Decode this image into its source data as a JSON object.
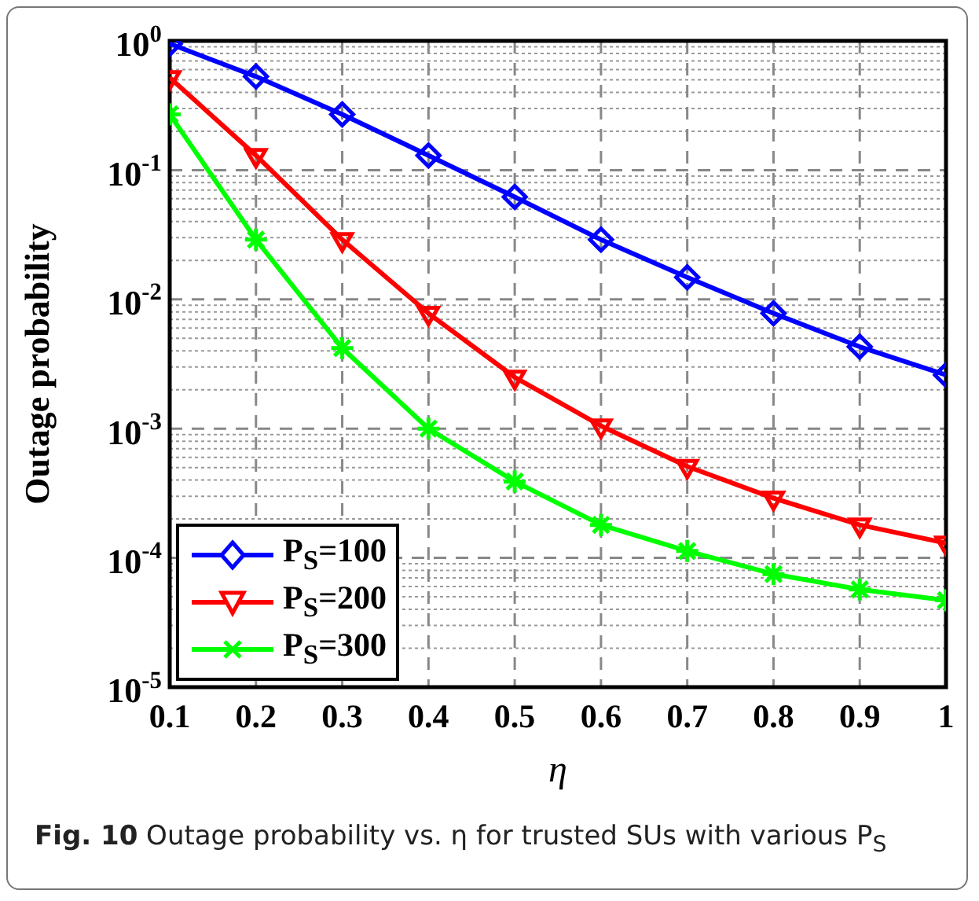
{
  "chart_data": {
    "type": "line",
    "xlabel": "η",
    "ylabel": "Outage probability",
    "annotations": [
      "Fig. 10 Outage probability vs. η for trusted SUs with various P$_{S}$"
    ],
    "x": [
      0.1,
      0.2,
      0.3,
      0.4,
      0.5,
      0.6,
      0.7,
      0.8,
      0.9,
      1
    ],
    "series": [
      {
        "name": "P$_{S}$=100",
        "color": "#0000ff",
        "marker": "diamond",
        "values": [
          0.95,
          0.53,
          0.27,
          0.13,
          0.062,
          0.029,
          0.0148,
          0.0078,
          0.0043,
          0.0026
        ]
      },
      {
        "name": "P$_{S}$=200",
        "color": "#ff0000",
        "marker": "triangle",
        "values": [
          0.52,
          0.13,
          0.029,
          0.0078,
          0.0025,
          0.00105,
          0.00051,
          0.00029,
          0.00018,
          0.00013
        ]
      },
      {
        "name": "P$_{S}$=300",
        "color": "#00ff00",
        "marker": "cross",
        "values": [
          0.27,
          0.029,
          0.0042,
          0.001,
          0.00039,
          0.00018,
          0.000113,
          7.5e-05,
          5.7e-05,
          4.7e-05
        ]
      }
    ],
    "xlim": [
      0.1,
      1
    ],
    "xticks": [
      0.1,
      0.2,
      0.3,
      0.4,
      0.5,
      0.6,
      0.7,
      0.8,
      0.9,
      1
    ],
    "ylim": [
      1e-05,
      1
    ],
    "yticks": [
      {
        "value": 1e-05,
        "label": "10$^{-5}$"
      },
      {
        "value": 0.0001,
        "label": "10$^{-4}$"
      },
      {
        "value": 0.001,
        "label": "10$^{-3}$"
      },
      {
        "value": 0.01,
        "label": "10$^{-2}$"
      },
      {
        "value": 0.1,
        "label": "10$^{-1}$"
      },
      {
        "value": 1,
        "label": "10$^{0}$"
      }
    ],
    "log": "y",
    "grid": true,
    "legend": "bottom left",
    "line_style": "solid"
  }
}
